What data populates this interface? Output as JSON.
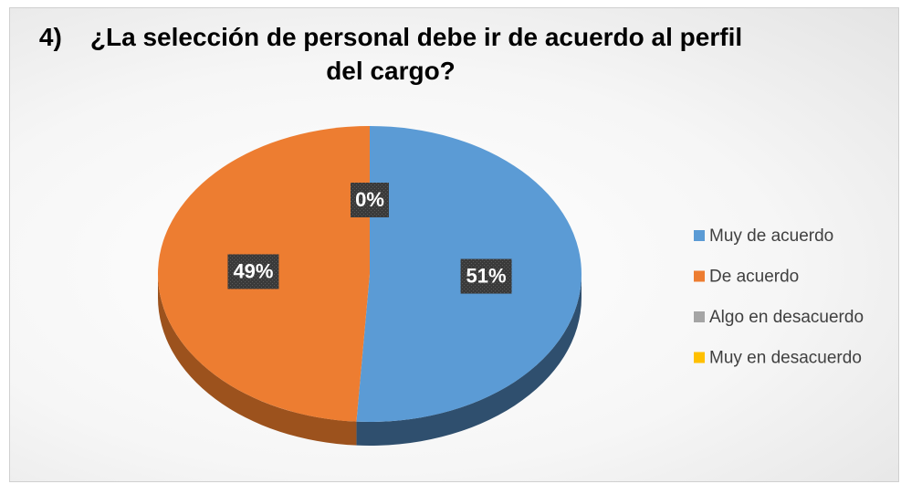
{
  "chart_data": {
    "type": "pie3d",
    "title": "4)    ¿La selección de personal debe ir de acuerdo al perfil del cargo?",
    "categories": [
      "Muy de acuerdo",
      "De acuerdo",
      "Algo en desacuerdo",
      "Muy en desacuerdo"
    ],
    "values": [
      51,
      49,
      0,
      0
    ],
    "value_labels": [
      "51%",
      "49%",
      "0%",
      null
    ],
    "colors": [
      "#5b9bd5",
      "#ed7d31",
      "#a5a5a5",
      "#ffc000"
    ],
    "side_colors": [
      "#2f4f6e",
      "#9c521d",
      "#6b6b6b",
      "#a67d00"
    ],
    "legend": "right"
  }
}
